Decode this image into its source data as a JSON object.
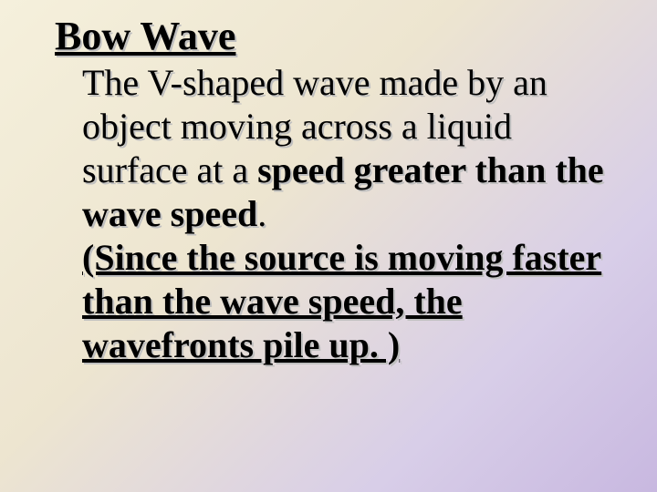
{
  "slide": {
    "background_gradient": [
      "#f5f0dc",
      "#ede5d0",
      "#d8cee8",
      "#c8b8e0"
    ],
    "font_family": "Times New Roman",
    "shadow_color": "#c0c0c0",
    "text_color": "#000000",
    "title": {
      "text": "Bow Wave",
      "fontsize": 44,
      "bold": true,
      "underline": true
    },
    "body": {
      "fontsize": 40,
      "line1_plain": "The V-shaped wave made by an object moving across a liquid surface at a ",
      "line1_bold": "speed greater than the wave speed",
      "line1_period": ".",
      "line2_bold_underline": "(Since the source is moving faster than the wave speed, the wavefronts pile up. )"
    }
  }
}
